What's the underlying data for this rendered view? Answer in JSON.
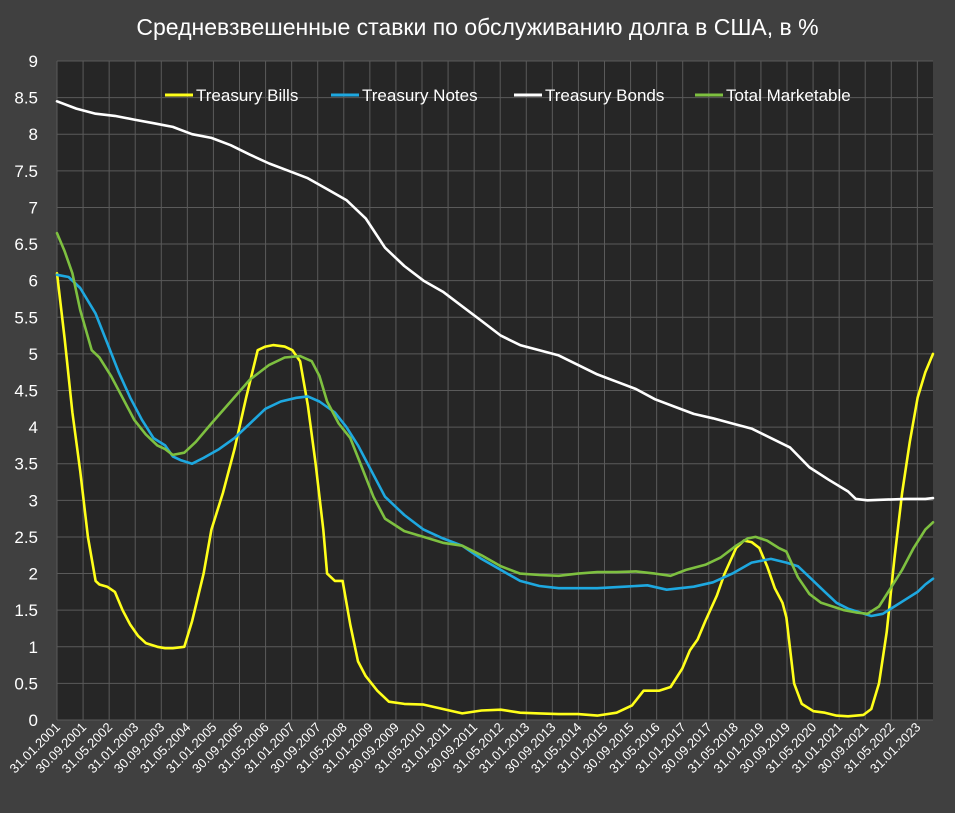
{
  "colors": {
    "background": "#404040",
    "plot_area": "#262626",
    "grid": "#5a5a5a",
    "text": "#ffffff"
  },
  "chart_data": {
    "type": "line",
    "title": "Средневзвешенные ставки по обслуживанию долга в США, в %",
    "xlabel": "",
    "ylabel": "",
    "ylim": [
      0,
      9
    ],
    "y_ticks": [
      "0",
      "0.5",
      "1",
      "1.5",
      "2",
      "2.5",
      "3",
      "3.5",
      "4",
      "4.5",
      "5",
      "5.5",
      "6",
      "6.5",
      "7",
      "7.5",
      "8",
      "8.5",
      "9"
    ],
    "x_tick_labels": [
      "31.01.2001",
      "30.09.2001",
      "31.05.2002",
      "31.01.2003",
      "30.09.2003",
      "31.05.2004",
      "31.01.2005",
      "30.09.2005",
      "31.05.2006",
      "31.01.2007",
      "30.09.2007",
      "31.05.2008",
      "31.01.2009",
      "30.09.2009",
      "31.05.2010",
      "31.01.2011",
      "30.09.2011",
      "31.05.2012",
      "31.01.2013",
      "30.09.2013",
      "31.05.2014",
      "31.01.2015",
      "30.09.2015",
      "31.05.2016",
      "31.01.2017",
      "30.09.2017",
      "31.05.2018",
      "31.01.2019",
      "30.09.2019",
      "31.05.2020",
      "31.01.2021",
      "30.09.2021",
      "31.05.2022",
      "31.01.2023"
    ],
    "x_range": [
      2001.0,
      2023.7
    ],
    "grid": true,
    "legend_position": "top",
    "series": [
      {
        "name": "Treasury Bills",
        "color": "#ffff1a",
        "x": [
          2001.0,
          2001.2,
          2001.4,
          2001.6,
          2001.8,
          2002.0,
          2002.1,
          2002.3,
          2002.5,
          2002.7,
          2002.9,
          2003.1,
          2003.3,
          2003.6,
          2003.8,
          2004.0,
          2004.3,
          2004.5,
          2004.8,
          2005.0,
          2005.3,
          2005.6,
          2005.9,
          2006.2,
          2006.4,
          2006.6,
          2006.9,
          2007.1,
          2007.3,
          2007.5,
          2007.7,
          2007.9,
          2008.0,
          2008.2,
          2008.4,
          2008.6,
          2008.8,
          2009.0,
          2009.3,
          2009.6,
          2010.0,
          2010.5,
          2011.0,
          2011.5,
          2012.0,
          2012.5,
          2013.0,
          2013.5,
          2014.0,
          2014.5,
          2015.0,
          2015.5,
          2015.9,
          2016.2,
          2016.6,
          2016.9,
          2017.2,
          2017.4,
          2017.6,
          2017.8,
          2018.1,
          2018.3,
          2018.6,
          2018.8,
          2019.0,
          2019.2,
          2019.4,
          2019.6,
          2019.8,
          2019.9,
          2020.1,
          2020.3,
          2020.6,
          2020.9,
          2021.2,
          2021.5,
          2021.9,
          2022.1,
          2022.3,
          2022.5,
          2022.7,
          2022.9,
          2023.1,
          2023.3,
          2023.5,
          2023.7
        ],
        "values": [
          6.1,
          5.2,
          4.2,
          3.4,
          2.5,
          1.9,
          1.85,
          1.82,
          1.75,
          1.5,
          1.3,
          1.15,
          1.05,
          1.0,
          0.98,
          0.98,
          1.0,
          1.35,
          2.0,
          2.6,
          3.1,
          3.7,
          4.4,
          5.05,
          5.1,
          5.12,
          5.1,
          5.05,
          4.9,
          4.3,
          3.5,
          2.6,
          2.0,
          1.9,
          1.9,
          1.3,
          0.8,
          0.6,
          0.4,
          0.25,
          0.22,
          0.21,
          0.15,
          0.09,
          0.13,
          0.14,
          0.1,
          0.09,
          0.08,
          0.08,
          0.06,
          0.1,
          0.2,
          0.4,
          0.4,
          0.45,
          0.7,
          0.95,
          1.1,
          1.35,
          1.7,
          2.0,
          2.35,
          2.45,
          2.43,
          2.35,
          2.1,
          1.8,
          1.6,
          1.4,
          0.5,
          0.22,
          0.12,
          0.1,
          0.06,
          0.05,
          0.07,
          0.15,
          0.5,
          1.2,
          2.2,
          3.1,
          3.8,
          4.4,
          4.75,
          5.0
        ]
      },
      {
        "name": "Treasury Notes",
        "color": "#1ea8e0",
        "x": [
          2001.0,
          2001.3,
          2001.6,
          2002.0,
          2002.3,
          2002.6,
          2002.9,
          2003.2,
          2003.5,
          2003.8,
          2004.0,
          2004.2,
          2004.5,
          2004.8,
          2005.2,
          2005.6,
          2006.0,
          2006.4,
          2006.8,
          2007.2,
          2007.5,
          2007.8,
          2008.2,
          2008.5,
          2008.8,
          2009.2,
          2009.5,
          2010.0,
          2010.5,
          2011.0,
          2011.5,
          2012.0,
          2012.5,
          2013.0,
          2013.5,
          2014.0,
          2015.0,
          2015.7,
          2016.3,
          2016.8,
          2017.5,
          2018.0,
          2018.5,
          2019.0,
          2019.5,
          2019.9,
          2020.2,
          2020.5,
          2020.9,
          2021.2,
          2021.5,
          2021.8,
          2022.1,
          2022.4,
          2022.7,
          2023.0,
          2023.3,
          2023.5,
          2023.7
        ],
        "values": [
          6.08,
          6.05,
          5.9,
          5.55,
          5.15,
          4.75,
          4.4,
          4.1,
          3.85,
          3.75,
          3.6,
          3.55,
          3.5,
          3.58,
          3.7,
          3.85,
          4.05,
          4.25,
          4.35,
          4.4,
          4.42,
          4.35,
          4.2,
          4.0,
          3.75,
          3.35,
          3.05,
          2.8,
          2.6,
          2.48,
          2.38,
          2.2,
          2.05,
          1.9,
          1.83,
          1.8,
          1.8,
          1.82,
          1.84,
          1.78,
          1.82,
          1.88,
          2.0,
          2.15,
          2.2,
          2.15,
          2.1,
          1.95,
          1.75,
          1.6,
          1.52,
          1.47,
          1.42,
          1.45,
          1.55,
          1.65,
          1.75,
          1.85,
          1.93
        ]
      },
      {
        "name": "Treasury Bonds",
        "color": "#ffffff",
        "x": [
          2001.0,
          2001.5,
          2002.0,
          2002.5,
          2003.0,
          2003.5,
          2004.0,
          2004.5,
          2005.0,
          2005.5,
          2006.0,
          2006.5,
          2007.0,
          2007.5,
          2008.0,
          2008.5,
          2009.0,
          2009.5,
          2010.0,
          2010.5,
          2011.0,
          2011.5,
          2012.0,
          2012.5,
          2013.0,
          2013.5,
          2014.0,
          2014.5,
          2015.0,
          2015.5,
          2016.0,
          2016.5,
          2017.0,
          2017.5,
          2018.0,
          2018.5,
          2019.0,
          2019.5,
          2020.0,
          2020.5,
          2021.0,
          2021.5,
          2021.7,
          2022.0,
          2022.5,
          2023.0,
          2023.5,
          2023.7
        ],
        "values": [
          8.45,
          8.35,
          8.28,
          8.25,
          8.2,
          8.15,
          8.1,
          8.0,
          7.95,
          7.85,
          7.72,
          7.6,
          7.5,
          7.4,
          7.25,
          7.1,
          6.85,
          6.45,
          6.2,
          6.0,
          5.85,
          5.65,
          5.45,
          5.25,
          5.12,
          5.05,
          4.98,
          4.85,
          4.72,
          4.62,
          4.52,
          4.38,
          4.28,
          4.18,
          4.12,
          4.05,
          3.98,
          3.85,
          3.72,
          3.45,
          3.28,
          3.12,
          3.02,
          3.0,
          3.01,
          3.02,
          3.02,
          3.03
        ]
      },
      {
        "name": "Total Marketable",
        "color": "#7ec040",
        "x": [
          2001.0,
          2001.2,
          2001.4,
          2001.6,
          2001.9,
          2002.1,
          2002.4,
          2002.7,
          2003.0,
          2003.3,
          2003.6,
          2003.8,
          2004.0,
          2004.3,
          2004.6,
          2005.0,
          2005.5,
          2006.0,
          2006.5,
          2006.9,
          2007.3,
          2007.6,
          2007.8,
          2008.0,
          2008.3,
          2008.6,
          2008.9,
          2009.2,
          2009.5,
          2010.0,
          2010.5,
          2011.0,
          2011.5,
          2012.0,
          2012.5,
          2013.0,
          2013.5,
          2014.0,
          2014.5,
          2015.0,
          2015.5,
          2016.0,
          2016.5,
          2016.9,
          2017.3,
          2017.8,
          2018.2,
          2018.6,
          2018.9,
          2019.1,
          2019.4,
          2019.7,
          2019.9,
          2020.2,
          2020.5,
          2020.8,
          2021.1,
          2021.4,
          2021.7,
          2022.0,
          2022.3,
          2022.6,
          2022.9,
          2023.2,
          2023.5,
          2023.7
        ],
        "values": [
          6.65,
          6.4,
          6.1,
          5.6,
          5.05,
          4.95,
          4.7,
          4.4,
          4.1,
          3.9,
          3.75,
          3.7,
          3.62,
          3.65,
          3.8,
          4.05,
          4.35,
          4.65,
          4.85,
          4.95,
          4.97,
          4.9,
          4.7,
          4.35,
          4.05,
          3.85,
          3.45,
          3.05,
          2.75,
          2.58,
          2.5,
          2.42,
          2.38,
          2.25,
          2.1,
          2.0,
          1.98,
          1.97,
          2.0,
          2.02,
          2.02,
          2.03,
          2.0,
          1.97,
          2.05,
          2.12,
          2.22,
          2.38,
          2.48,
          2.5,
          2.45,
          2.35,
          2.3,
          1.95,
          1.72,
          1.6,
          1.55,
          1.5,
          1.47,
          1.45,
          1.55,
          1.8,
          2.05,
          2.35,
          2.6,
          2.7
        ]
      }
    ]
  }
}
